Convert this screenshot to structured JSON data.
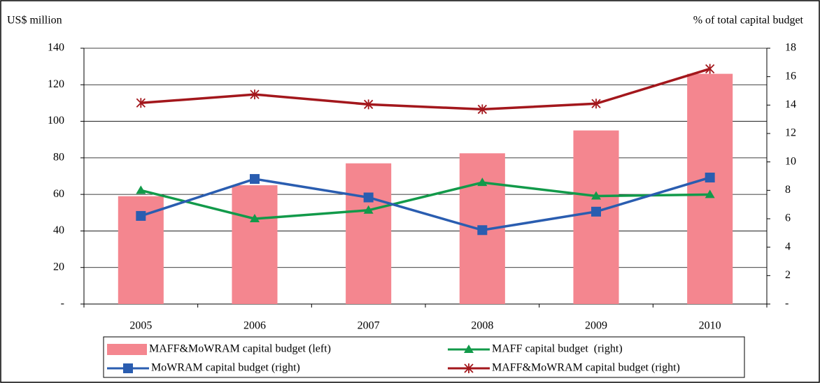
{
  "chart_data": {
    "type": "combo",
    "y_label": "US$ million",
    "y2_label": "% of total capital budget",
    "categories": [
      "2005",
      "2006",
      "2007",
      "2008",
      "2009",
      "2010"
    ],
    "ylim": [
      0,
      140
    ],
    "yticks": [
      {
        "value": 0,
        "label": "-"
      },
      20,
      40,
      60,
      80,
      100,
      120,
      140
    ],
    "y2lim": [
      0,
      18
    ],
    "y2ticks": [
      {
        "value": 0,
        "label": "-"
      },
      2,
      4,
      6,
      8,
      10,
      12,
      14,
      16,
      18
    ],
    "grid": true,
    "legend": "bottom",
    "series": [
      {
        "name": "MAFF&MoWRAM capital budget (left)",
        "type": "bar",
        "color": "#f4868f",
        "values": [
          59,
          65,
          77,
          82.5,
          95,
          126
        ]
      },
      {
        "name": "MAFF capital budget  (right)",
        "type": "line",
        "marker": "triangle",
        "color": "#129a4a",
        "axis": "y2",
        "values": [
          8.0,
          6.0,
          6.6,
          8.55,
          7.6,
          7.7
        ]
      },
      {
        "name": "MoWRAM capital budget (right)",
        "type": "line",
        "marker": "square",
        "color": "#2a5db0",
        "axis": "y2",
        "values": [
          6.2,
          8.8,
          7.5,
          5.2,
          6.5,
          8.9
        ]
      },
      {
        "name": "MAFF&MoWRAM capital budget (right)",
        "type": "line",
        "marker": "asterisk",
        "color": "#a3171c",
        "axis": "y2",
        "values": [
          14.15,
          14.75,
          14.05,
          13.7,
          14.1,
          16.55
        ]
      }
    ]
  }
}
